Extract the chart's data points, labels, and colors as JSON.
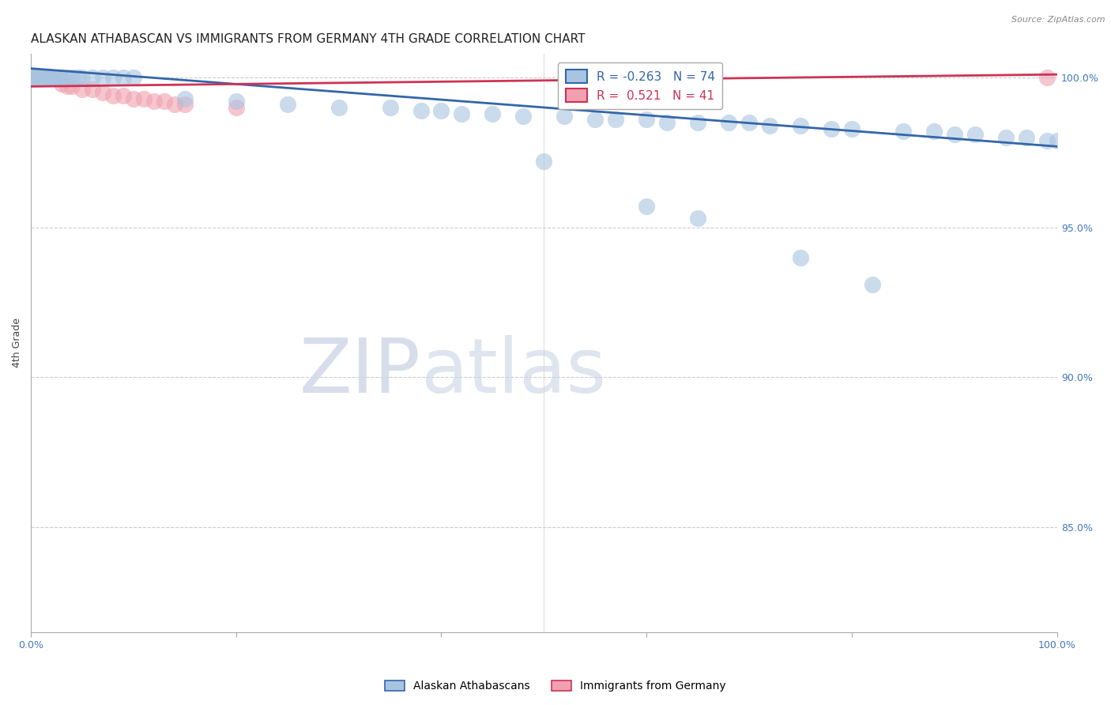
{
  "title": "ALASKAN ATHABASCAN VS IMMIGRANTS FROM GERMANY 4TH GRADE CORRELATION CHART",
  "source": "Source: ZipAtlas.com",
  "ylabel": "4th Grade",
  "ytick_labels": [
    "85.0%",
    "90.0%",
    "95.0%",
    "100.0%"
  ],
  "ytick_values": [
    0.85,
    0.9,
    0.95,
    1.0
  ],
  "xlim": [
    0.0,
    1.0
  ],
  "ylim": [
    0.815,
    1.008
  ],
  "blue_label": "Alaskan Athabascans",
  "pink_label": "Immigrants from Germany",
  "blue_R": -0.263,
  "blue_N": 74,
  "pink_R": 0.521,
  "pink_N": 41,
  "blue_color": "#A8C4E0",
  "pink_color": "#F0A0B0",
  "blue_line_color": "#3366AA",
  "pink_line_color": "#CC3355",
  "blue_line_x0": 0.0,
  "blue_line_y0": 1.003,
  "blue_line_x1": 1.0,
  "blue_line_y1": 0.977,
  "pink_line_x0": 0.0,
  "pink_line_y0": 0.997,
  "pink_line_x1": 1.0,
  "pink_line_y1": 1.001,
  "blue_scatter_x": [
    0.001,
    0.002,
    0.003,
    0.004,
    0.005,
    0.006,
    0.007,
    0.008,
    0.009,
    0.01,
    0.011,
    0.012,
    0.013,
    0.014,
    0.015,
    0.016,
    0.017,
    0.018,
    0.019,
    0.02,
    0.021,
    0.022,
    0.023,
    0.024,
    0.025,
    0.026,
    0.027,
    0.028,
    0.029,
    0.03,
    0.035,
    0.04,
    0.045,
    0.05,
    0.06,
    0.07,
    0.08,
    0.09,
    0.1,
    0.15,
    0.2,
    0.25,
    0.3,
    0.35,
    0.38,
    0.4,
    0.42,
    0.45,
    0.48,
    0.5,
    0.52,
    0.55,
    0.57,
    0.6,
    0.62,
    0.65,
    0.68,
    0.7,
    0.72,
    0.75,
    0.78,
    0.8,
    0.85,
    0.88,
    0.9,
    0.92,
    0.95,
    0.97,
    0.99,
    1.0,
    0.6,
    0.65,
    0.75,
    0.82
  ],
  "blue_scatter_y": [
    1.0,
    1.0,
    1.0,
    1.0,
    1.0,
    1.0,
    1.0,
    1.0,
    1.0,
    1.0,
    1.0,
    1.0,
    1.0,
    1.0,
    1.0,
    1.0,
    1.0,
    1.0,
    1.0,
    1.0,
    1.0,
    1.0,
    1.0,
    1.0,
    1.0,
    1.0,
    1.0,
    1.0,
    1.0,
    1.0,
    1.0,
    1.0,
    1.0,
    1.0,
    1.0,
    1.0,
    1.0,
    1.0,
    1.0,
    0.993,
    0.992,
    0.991,
    0.99,
    0.99,
    0.989,
    0.989,
    0.988,
    0.988,
    0.987,
    0.972,
    0.987,
    0.986,
    0.986,
    0.986,
    0.985,
    0.985,
    0.985,
    0.985,
    0.984,
    0.984,
    0.983,
    0.983,
    0.982,
    0.982,
    0.981,
    0.981,
    0.98,
    0.98,
    0.979,
    0.979,
    0.957,
    0.953,
    0.94,
    0.931
  ],
  "pink_scatter_x": [
    0.001,
    0.002,
    0.003,
    0.004,
    0.005,
    0.006,
    0.007,
    0.008,
    0.009,
    0.01,
    0.011,
    0.012,
    0.013,
    0.014,
    0.015,
    0.016,
    0.017,
    0.018,
    0.019,
    0.02,
    0.021,
    0.022,
    0.023,
    0.024,
    0.025,
    0.03,
    0.035,
    0.04,
    0.05,
    0.06,
    0.07,
    0.08,
    0.09,
    0.1,
    0.11,
    0.12,
    0.13,
    0.14,
    0.15,
    0.2,
    0.99
  ],
  "pink_scatter_y": [
    1.0,
    1.0,
    1.0,
    1.0,
    1.0,
    1.0,
    1.0,
    1.0,
    1.0,
    1.0,
    1.0,
    1.0,
    1.0,
    1.0,
    1.0,
    1.0,
    1.0,
    1.0,
    1.0,
    1.0,
    1.0,
    1.0,
    1.0,
    1.0,
    1.0,
    0.998,
    0.997,
    0.997,
    0.996,
    0.996,
    0.995,
    0.994,
    0.994,
    0.993,
    0.993,
    0.992,
    0.992,
    0.991,
    0.991,
    0.99,
    1.0
  ],
  "watermark_zip": "ZIP",
  "watermark_atlas": "atlas",
  "background_color": "#FFFFFF",
  "grid_color": "#CCCCCC",
  "axis_color": "#AAAAAA",
  "right_tick_color": "#4477BB",
  "title_fontsize": 11,
  "axis_label_fontsize": 9,
  "tick_fontsize": 9,
  "legend_fontsize": 11
}
